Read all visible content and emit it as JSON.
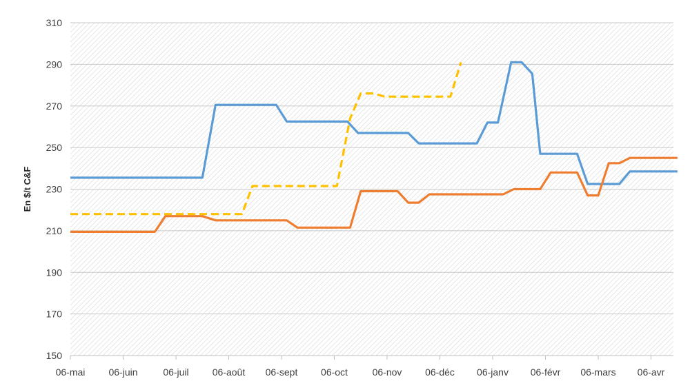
{
  "chart_data": {
    "type": "line",
    "title": "",
    "xlabel": "",
    "ylabel": "En $/t C&F",
    "ylim": [
      150,
      310
    ],
    "yticks": [
      150,
      170,
      190,
      210,
      230,
      250,
      270,
      290,
      310
    ],
    "xticks": [
      "06-mai",
      "06-juin",
      "06-juil",
      "06-août",
      "06-sept",
      "06-oct",
      "06-nov",
      "06-déc",
      "06-janv",
      "06-févr",
      "06-mars",
      "06-avr"
    ],
    "x_range_months": [
      0,
      11.5
    ],
    "grid": true,
    "legend": "none",
    "series": [
      {
        "color": "#5B9BD5",
        "style": "solid",
        "points": [
          [
            0.0,
            235.5
          ],
          [
            2.5,
            235.5
          ],
          [
            2.75,
            270.5
          ],
          [
            3.9,
            270.5
          ],
          [
            4.1,
            262.5
          ],
          [
            5.25,
            262.5
          ],
          [
            5.45,
            257
          ],
          [
            6.4,
            257
          ],
          [
            6.6,
            252
          ],
          [
            7.7,
            252
          ],
          [
            7.9,
            262
          ],
          [
            8.1,
            262
          ],
          [
            8.35,
            291
          ],
          [
            8.55,
            291
          ],
          [
            8.75,
            285.5
          ],
          [
            8.9,
            247
          ],
          [
            9.6,
            247
          ],
          [
            9.8,
            232.5
          ],
          [
            10.4,
            232.5
          ],
          [
            10.6,
            238.5
          ],
          [
            11.5,
            238.5
          ]
        ]
      },
      {
        "color": "#ED7D31",
        "style": "solid",
        "points": [
          [
            0.0,
            209.5
          ],
          [
            1.6,
            209.5
          ],
          [
            1.8,
            217
          ],
          [
            2.5,
            217
          ],
          [
            2.75,
            215
          ],
          [
            4.1,
            215
          ],
          [
            4.3,
            211.5
          ],
          [
            5.3,
            211.5
          ],
          [
            5.5,
            229
          ],
          [
            6.2,
            229
          ],
          [
            6.4,
            223.5
          ],
          [
            6.6,
            223.5
          ],
          [
            6.8,
            227.5
          ],
          [
            8.2,
            227.5
          ],
          [
            8.4,
            230
          ],
          [
            8.9,
            230
          ],
          [
            9.1,
            238
          ],
          [
            9.6,
            238
          ],
          [
            9.8,
            227
          ],
          [
            10.0,
            227
          ],
          [
            10.2,
            242.5
          ],
          [
            10.4,
            242.5
          ],
          [
            10.6,
            245
          ],
          [
            11.5,
            245
          ]
        ]
      },
      {
        "color": "#FFC000",
        "style": "dashed",
        "points": [
          [
            0.0,
            218
          ],
          [
            3.25,
            218
          ],
          [
            3.45,
            231.5
          ],
          [
            5.05,
            231.5
          ],
          [
            5.3,
            264
          ],
          [
            5.5,
            276
          ],
          [
            5.75,
            276
          ],
          [
            5.95,
            274.5
          ],
          [
            7.2,
            274.5
          ],
          [
            7.4,
            291
          ]
        ]
      }
    ]
  }
}
